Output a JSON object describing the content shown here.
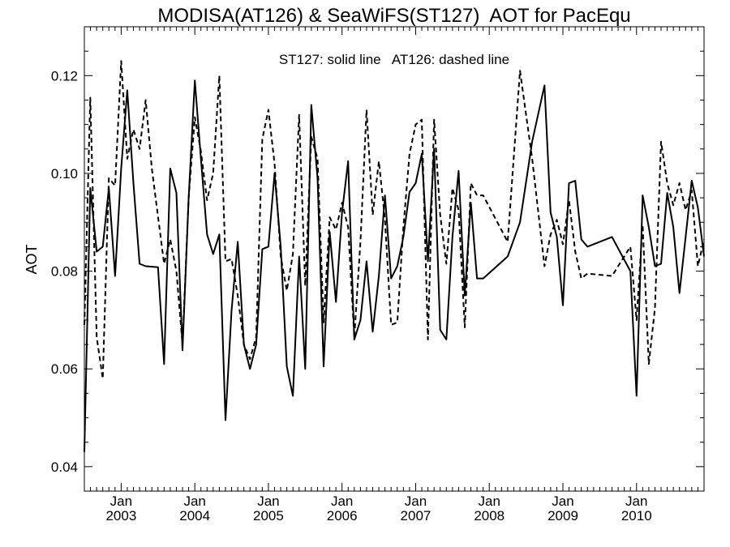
{
  "chart_data": {
    "type": "line",
    "title": "MODISA(AT126) & SeaWiFS(ST127)  AOT for PacEqu",
    "annotation": "ST127: solid line   AT126: dashed line",
    "ylabel": "AOT",
    "xlabel": "",
    "xlim": [
      2002.5,
      2010.917
    ],
    "ylim": [
      0.035,
      0.13
    ],
    "y_ticks": [
      {
        "value": 0.04,
        "label": "0.04"
      },
      {
        "value": 0.06,
        "label": "0.06"
      },
      {
        "value": 0.08,
        "label": "0.08"
      },
      {
        "value": 0.1,
        "label": "0.10"
      },
      {
        "value": 0.12,
        "label": "0.12"
      }
    ],
    "x_ticks": [
      {
        "value": 2003.0,
        "month": "Jan",
        "year": "2003"
      },
      {
        "value": 2004.0,
        "month": "Jan",
        "year": "2004"
      },
      {
        "value": 2005.0,
        "month": "Jan",
        "year": "2005"
      },
      {
        "value": 2006.0,
        "month": "Jan",
        "year": "2006"
      },
      {
        "value": 2007.0,
        "month": "Jan",
        "year": "2007"
      },
      {
        "value": 2008.0,
        "month": "Jan",
        "year": "2008"
      },
      {
        "value": 2009.0,
        "month": "Jan",
        "year": "2009"
      },
      {
        "value": 2010.0,
        "month": "Jan",
        "year": "2010"
      }
    ],
    "series": [
      {
        "style": "solid",
        "x": [
          2002.5,
          2002.58,
          2002.667,
          2002.75,
          2002.833,
          2002.917,
          2003.0,
          2003.083,
          2003.167,
          2003.25,
          2003.333,
          2003.5,
          2003.583,
          2003.667,
          2003.75,
          2003.833,
          2003.917,
          2004.0,
          2004.083,
          2004.167,
          2004.25,
          2004.333,
          2004.417,
          2004.5,
          2004.583,
          2004.667,
          2004.75,
          2004.833,
          2004.917,
          2005.0,
          2005.083,
          2005.167,
          2005.25,
          2005.333,
          2005.417,
          2005.5,
          2005.583,
          2005.667,
          2005.75,
          2005.833,
          2005.917,
          2006.0,
          2006.083,
          2006.167,
          2006.25,
          2006.333,
          2006.417,
          2006.5,
          2006.583,
          2006.667,
          2006.75,
          2006.833,
          2006.917,
          2007.0,
          2007.083,
          2007.167,
          2007.25,
          2007.333,
          2007.417,
          2007.5,
          2007.583,
          2007.667,
          2007.75,
          2007.833,
          2007.917,
          2008.25,
          2008.417,
          2008.583,
          2008.75,
          2008.833,
          2008.917,
          2009.0,
          2009.083,
          2009.167,
          2009.25,
          2009.333,
          2009.667,
          2009.917,
          2010.0,
          2010.083,
          2010.167,
          2010.25,
          2010.333,
          2010.417,
          2010.5,
          2010.583,
          2010.667,
          2010.75,
          2010.833,
          2010.917
        ],
        "y": [
          0.043,
          0.097,
          0.084,
          0.085,
          0.097,
          0.079,
          0.101,
          0.117,
          0.098,
          0.0815,
          0.081,
          0.0808,
          0.061,
          0.101,
          0.096,
          0.0638,
          0.095,
          0.119,
          0.103,
          0.0875,
          0.0835,
          0.0875,
          0.0495,
          0.072,
          0.086,
          0.065,
          0.06,
          0.065,
          0.0845,
          0.085,
          0.1,
          0.085,
          0.0605,
          0.0545,
          0.083,
          0.06,
          0.114,
          0.099,
          0.0605,
          0.088,
          0.0737,
          0.092,
          0.1025,
          0.066,
          0.07,
          0.082,
          0.0676,
          0.079,
          0.0955,
          0.0785,
          0.081,
          0.087,
          0.0962,
          0.098,
          0.104,
          0.082,
          0.105,
          0.068,
          0.066,
          0.087,
          0.1005,
          0.075,
          0.094,
          0.0785,
          0.0785,
          0.083,
          0.09,
          0.1065,
          0.118,
          0.092,
          0.087,
          0.073,
          0.098,
          0.0985,
          0.0865,
          0.085,
          0.087,
          0.08,
          0.0545,
          0.0955,
          0.089,
          0.081,
          0.0815,
          0.096,
          0.089,
          0.0755,
          0.087,
          0.0985,
          0.093,
          0.083
        ]
      },
      {
        "style": "dashed",
        "x": [
          2002.5,
          2002.58,
          2002.667,
          2002.75,
          2002.833,
          2002.917,
          2003.0,
          2003.083,
          2003.167,
          2003.25,
          2003.333,
          2003.417,
          2003.583,
          2003.667,
          2003.75,
          2003.833,
          2003.917,
          2004.0,
          2004.083,
          2004.167,
          2004.25,
          2004.333,
          2004.417,
          2004.5,
          2004.583,
          2004.667,
          2004.75,
          2004.833,
          2004.917,
          2005.0,
          2005.083,
          2005.167,
          2005.25,
          2005.333,
          2005.417,
          2005.5,
          2005.583,
          2005.667,
          2005.75,
          2005.833,
          2005.917,
          2006.0,
          2006.083,
          2006.167,
          2006.25,
          2006.333,
          2006.417,
          2006.5,
          2006.583,
          2006.667,
          2006.75,
          2006.833,
          2006.917,
          2007.0,
          2007.083,
          2007.167,
          2007.25,
          2007.333,
          2007.417,
          2007.5,
          2007.583,
          2007.667,
          2007.75,
          2007.833,
          2007.917,
          2008.25,
          2008.417,
          2008.583,
          2008.75,
          2008.833,
          2008.917,
          2009.0,
          2009.083,
          2009.167,
          2009.25,
          2009.333,
          2009.667,
          2009.917,
          2010.0,
          2010.083,
          2010.167,
          2010.25,
          2010.333,
          2010.417,
          2010.5,
          2010.583,
          2010.667,
          2010.75,
          2010.833,
          2010.917
        ],
        "y": [
          0.069,
          0.1155,
          0.0665,
          0.058,
          0.099,
          0.0975,
          0.123,
          0.103,
          0.109,
          0.105,
          0.115,
          0.101,
          0.0815,
          0.0865,
          0.08,
          0.065,
          0.095,
          0.1115,
          0.1045,
          0.0945,
          0.1,
          0.12,
          0.082,
          0.0825,
          0.075,
          0.065,
          0.062,
          0.0665,
          0.107,
          0.113,
          0.102,
          0.083,
          0.076,
          0.0835,
          0.112,
          0.077,
          0.1075,
          0.103,
          0.0695,
          0.091,
          0.0885,
          0.094,
          0.089,
          0.0665,
          0.086,
          0.113,
          0.0915,
          0.1025,
          0.0905,
          0.069,
          0.0695,
          0.089,
          0.104,
          0.11,
          0.111,
          0.066,
          0.111,
          0.0915,
          0.0815,
          0.097,
          0.0925,
          0.0685,
          0.098,
          0.0955,
          0.0955,
          0.086,
          0.121,
          0.103,
          0.081,
          0.0875,
          0.0905,
          0.0855,
          0.0945,
          0.084,
          0.0785,
          0.0795,
          0.079,
          0.085,
          0.07,
          0.0895,
          0.061,
          0.0725,
          0.1065,
          0.098,
          0.0935,
          0.098,
          0.0925,
          0.0965,
          0.081,
          0.0865
        ]
      }
    ]
  }
}
